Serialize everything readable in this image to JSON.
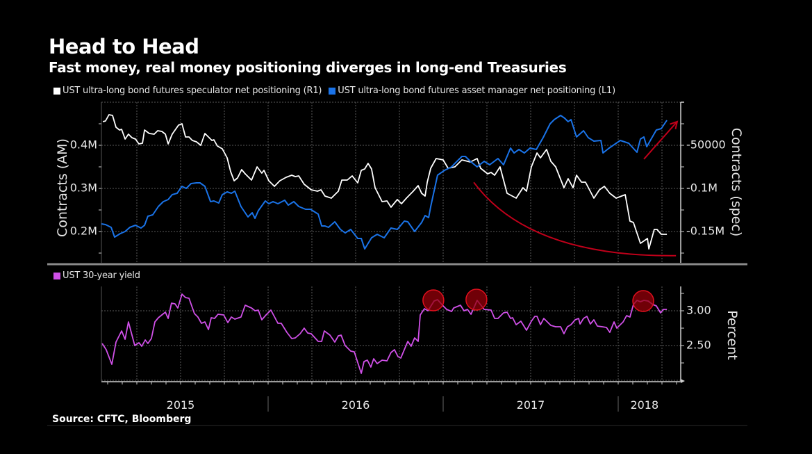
{
  "header": {
    "title": "Head to Head",
    "subtitle": "Fast money, real money positioning diverges in long-end Treasuries"
  },
  "footer": {
    "source": "Source: CFTC, Bloomberg"
  },
  "colors": {
    "background": "#000000",
    "speculator": "#ffffff",
    "asset_manager": "#1a73e8",
    "yield": "#d050e8",
    "annotation": "#c0001a",
    "grid": "#5a5a5a",
    "axis": "#d0d0d0"
  },
  "chart_data": [
    {
      "type": "line",
      "panel": "top",
      "title": "Head to Head",
      "xlabel": "",
      "x_unit": "decimal year",
      "xlim": [
        2015.05,
        2018.4
      ],
      "grid": true,
      "legend_position": "top-left",
      "legend": [
        "UST ultra-long bond futures speculator net positioning (R1)",
        "UST ultra-long bond futures asset manager net positioning (L1)"
      ],
      "y_left": {
        "label": "Contracts (AM)",
        "ticks": [
          0.2,
          0.3,
          0.4
        ],
        "tick_labels": [
          "0.2M",
          "0.3M",
          "0.4M"
        ],
        "range": [
          0.128,
          0.5
        ],
        "unit": "million contracts"
      },
      "y_right": {
        "label": "Contracts (spec)",
        "ticks": [
          -50000,
          -100000,
          -150000
        ],
        "tick_labels": [
          "-50000",
          "-0.1M",
          "-0.15M"
        ],
        "range": [
          -186000,
          0
        ],
        "unit": "contracts"
      },
      "series": [
        {
          "name": "UST ultra-long bond futures speculator net positioning (R1)",
          "axis": "right",
          "color": "#ffffff",
          "x": [
            2015.056,
            2015.071,
            2015.091,
            2015.111,
            2015.131,
            2015.151,
            2015.163,
            2015.183,
            2015.202,
            2015.222,
            2015.242,
            2015.262,
            2015.282,
            2015.294,
            2015.321,
            2015.349,
            2015.369,
            2015.393,
            2015.413,
            2015.429,
            2015.452,
            2015.488,
            2015.508,
            2015.528,
            2015.548,
            2015.567,
            2015.591,
            2015.615,
            2015.639,
            2015.659,
            2015.679,
            2015.69,
            2015.71,
            2015.738,
            2015.766,
            2015.786,
            2015.806,
            2015.825,
            2015.849,
            2015.869,
            2015.905,
            2015.937,
            2015.964,
            2015.976,
            2016.004,
            2016.036,
            2016.067,
            2016.103,
            2016.135,
            2016.155,
            2016.175,
            2016.206,
            2016.246,
            2016.282,
            2016.302,
            2016.325,
            2016.361,
            2016.401,
            2016.421,
            2016.452,
            2016.48,
            2016.512,
            2016.532,
            2016.552,
            2016.571,
            2016.591,
            2016.611,
            2016.651,
            2016.679,
            2016.702,
            2016.738,
            2016.762,
            2016.79,
            2016.829,
            2016.857,
            2016.877,
            2016.897,
            2016.909,
            2016.929,
            2016.96,
            2017.0,
            2017.028,
            2017.067,
            2017.107,
            2017.155,
            2017.194,
            2017.214,
            2017.254,
            2017.274,
            2017.294,
            2017.325,
            2017.365,
            2017.417,
            2017.456,
            2017.476,
            2017.504,
            2017.536,
            2017.556,
            2017.591,
            2017.615,
            2017.643,
            2017.69,
            2017.714,
            2017.742,
            2017.762,
            2017.79,
            2017.813,
            2017.861,
            2017.893,
            2017.921,
            2017.952,
            2017.988,
            2018.04,
            2018.067,
            2018.087,
            2018.127,
            2018.167,
            2018.175,
            2018.206,
            2018.222,
            2018.246,
            2018.278
          ],
          "values": [
            -22581,
            -21774,
            -14516,
            -15323,
            -29032,
            -32258,
            -31452,
            -42742,
            -37097,
            -41129,
            -42742,
            -48387,
            -47581,
            -32258,
            -36290,
            -37097,
            -33065,
            -33871,
            -37097,
            -48387,
            -37097,
            -26613,
            -25000,
            -40323,
            -40323,
            -44355,
            -45968,
            -50000,
            -36290,
            -40323,
            -44355,
            -43548,
            -50806,
            -54032,
            -64516,
            -80645,
            -91129,
            -87903,
            -78226,
            -83065,
            -90323,
            -75000,
            -82258,
            -79032,
            -91129,
            -97581,
            -91129,
            -87097,
            -84677,
            -86290,
            -85484,
            -95161,
            -101613,
            -103226,
            -101613,
            -108871,
            -111290,
            -103226,
            -90323,
            -90323,
            -85484,
            -93548,
            -79032,
            -77419,
            -70968,
            -77419,
            -99194,
            -115323,
            -114516,
            -121774,
            -112903,
            -117742,
            -111290,
            -103226,
            -96774,
            -105645,
            -108871,
            -92742,
            -76613,
            -65323,
            -66935,
            -76613,
            -75000,
            -66935,
            -69355,
            -65323,
            -76613,
            -83065,
            -81452,
            -84677,
            -75000,
            -105645,
            -111290,
            -99194,
            -103226,
            -75000,
            -58871,
            -64516,
            -54839,
            -68548,
            -75000,
            -99194,
            -88710,
            -99194,
            -84677,
            -92742,
            -92742,
            -111290,
            -101613,
            -97581,
            -105645,
            -111290,
            -107258,
            -137903,
            -139516,
            -163710,
            -158065,
            -170161,
            -147581,
            -147581,
            -153226,
            -153226
          ]
        },
        {
          "name": "UST ultra-long bond futures asset manager net positioning (L1)",
          "axis": "left",
          "color": "#1a73e8",
          "x": [
            2015.048,
            2015.071,
            2015.103,
            2015.123,
            2015.155,
            2015.183,
            2015.21,
            2015.242,
            2015.274,
            2015.294,
            2015.313,
            2015.341,
            2015.373,
            2015.401,
            2015.429,
            2015.452,
            2015.48,
            2015.508,
            2015.532,
            2015.56,
            2015.591,
            2015.611,
            2015.639,
            2015.671,
            2015.69,
            2015.718,
            2015.738,
            2015.766,
            2015.79,
            2015.81,
            2015.845,
            2015.885,
            2015.909,
            2015.925,
            2015.944,
            2015.984,
            2016.004,
            2016.028,
            2016.056,
            2016.095,
            2016.115,
            2016.147,
            2016.175,
            2016.214,
            2016.242,
            2016.286,
            2016.306,
            2016.325,
            2016.345,
            2016.381,
            2016.413,
            2016.44,
            2016.472,
            2016.512,
            2016.532,
            2016.552,
            2016.591,
            2016.623,
            2016.663,
            2016.702,
            2016.738,
            2016.778,
            2016.798,
            2016.837,
            2016.877,
            2016.897,
            2016.917,
            2016.929,
            2016.968,
            2017.008,
            2017.048,
            2017.067,
            2017.107,
            2017.127,
            2017.155,
            2017.194,
            2017.234,
            2017.266,
            2017.313,
            2017.345,
            2017.385,
            2017.405,
            2017.433,
            2017.464,
            2017.496,
            2017.532,
            2017.571,
            2017.611,
            2017.635,
            2017.671,
            2017.694,
            2017.714,
            2017.73,
            2017.762,
            2017.802,
            2017.829,
            2017.861,
            2017.901,
            2017.913,
            2017.948,
            2018.012,
            2018.06,
            2018.107,
            2018.127,
            2018.147,
            2018.163,
            2018.218,
            2018.246,
            2018.278
          ],
          "values": [
            0.2177,
            0.2161,
            0.2097,
            0.1871,
            0.1952,
            0.2,
            0.2097,
            0.2145,
            0.2081,
            0.2145,
            0.2355,
            0.2387,
            0.2581,
            0.2694,
            0.2742,
            0.2855,
            0.2887,
            0.3048,
            0.3,
            0.3113,
            0.3129,
            0.3129,
            0.3048,
            0.2694,
            0.271,
            0.2661,
            0.2855,
            0.2919,
            0.2887,
            0.2935,
            0.2581,
            0.2339,
            0.2435,
            0.2306,
            0.2484,
            0.271,
            0.2645,
            0.2694,
            0.2645,
            0.2726,
            0.2613,
            0.2694,
            0.2581,
            0.2516,
            0.2516,
            0.2403,
            0.2129,
            0.2129,
            0.2097,
            0.2226,
            0.2048,
            0.1968,
            0.2048,
            0.1839,
            0.1839,
            0.1597,
            0.1855,
            0.1935,
            0.1855,
            0.2081,
            0.2048,
            0.2242,
            0.2226,
            0.2,
            0.221,
            0.2371,
            0.2323,
            0.2581,
            0.3306,
            0.3419,
            0.35,
            0.3581,
            0.3742,
            0.3742,
            0.3629,
            0.35,
            0.3629,
            0.3548,
            0.3694,
            0.3548,
            0.3935,
            0.3823,
            0.3903,
            0.3823,
            0.3935,
            0.3903,
            0.4177,
            0.45,
            0.4597,
            0.4694,
            0.4629,
            0.4548,
            0.4597,
            0.4194,
            0.4339,
            0.4177,
            0.4097,
            0.4113,
            0.3823,
            0.3935,
            0.4113,
            0.4048,
            0.3839,
            0.4145,
            0.4194,
            0.3968,
            0.4355,
            0.4387,
            0.4581
          ]
        }
      ],
      "annotations": [
        {
          "kind": "curve",
          "description": "downtrend in speculator positioning",
          "from": [
            2017.175,
            -93000
          ],
          "to": [
            2018.33,
            -178000
          ],
          "axis": "right"
        },
        {
          "kind": "arrow",
          "description": "uptrend in asset manager positioning",
          "from": [
            2018.147,
            0.368
          ],
          "to": [
            2018.337,
            0.455
          ],
          "axis": "left"
        }
      ]
    },
    {
      "type": "line",
      "panel": "bottom",
      "xlabel": "",
      "x_unit": "decimal year",
      "xlim": [
        2015.05,
        2018.4
      ],
      "grid": true,
      "legend_position": "top-left",
      "legend": [
        "UST 30-year yield"
      ],
      "x_tick_labels": [
        "2015",
        "2016",
        "2017",
        "2018"
      ],
      "x_tick_positions": [
        2015.5,
        2016.5,
        2017.5,
        2018.15
      ],
      "year_boundaries": [
        2016,
        2017,
        2018
      ],
      "y_right": {
        "label": "Percent",
        "ticks": [
          2.5,
          3.0
        ],
        "tick_labels": [
          "2.50",
          "3.00"
        ],
        "range": [
          2.0,
          3.35
        ],
        "unit": "percent"
      },
      "series": [
        {
          "name": "UST 30-year yield",
          "axis": "right",
          "color": "#d050e8",
          "x": [
            2015.052,
            2015.075,
            2015.107,
            2015.131,
            2015.163,
            2015.183,
            2015.202,
            2015.238,
            2015.262,
            2015.278,
            2015.298,
            2015.313,
            2015.333,
            2015.353,
            2015.373,
            2015.393,
            2015.413,
            2015.429,
            2015.448,
            2015.468,
            2015.484,
            2015.508,
            2015.528,
            2015.548,
            2015.579,
            2015.599,
            2015.619,
            2015.639,
            2015.659,
            2015.675,
            2015.694,
            2015.714,
            2015.746,
            2015.77,
            2015.79,
            2015.81,
            2015.845,
            2015.869,
            2015.905,
            2015.925,
            2015.944,
            2015.964,
            2015.988,
            2016.016,
            2016.056,
            2016.075,
            2016.107,
            2016.135,
            2016.155,
            2016.183,
            2016.206,
            2016.226,
            2016.246,
            2016.286,
            2016.306,
            2016.321,
            2016.353,
            2016.381,
            2016.401,
            2016.417,
            2016.44,
            2016.472,
            2016.492,
            2016.532,
            2016.548,
            2016.567,
            2016.587,
            2016.603,
            2016.623,
            2016.651,
            2016.679,
            2016.702,
            2016.722,
            2016.742,
            2016.758,
            2016.798,
            2016.817,
            2016.837,
            2016.857,
            2016.869,
            2016.893,
            2016.913,
            2016.948,
            2016.968,
            2017.0,
            2017.02,
            2017.048,
            2017.06,
            2017.099,
            2017.119,
            2017.139,
            2017.159,
            2017.175,
            2017.194,
            2017.234,
            2017.274,
            2017.294,
            2017.313,
            2017.345,
            2017.365,
            2017.385,
            2017.397,
            2017.417,
            2017.444,
            2017.476,
            2017.504,
            2017.524,
            2017.536,
            2017.556,
            2017.575,
            2017.615,
            2017.643,
            2017.671,
            2017.69,
            2017.71,
            2017.73,
            2017.754,
            2017.774,
            2017.782,
            2017.802,
            2017.821,
            2017.841,
            2017.861,
            2017.881,
            2017.909,
            2017.933,
            2017.952,
            2017.976,
            2017.992,
            2018.028,
            2018.048,
            2018.067,
            2018.087,
            2018.107,
            2018.127,
            2018.147,
            2018.171,
            2018.198,
            2018.218,
            2018.242,
            2018.258,
            2018.278
          ],
          "values": [
            2.53,
            2.44,
            2.23,
            2.55,
            2.71,
            2.59,
            2.84,
            2.5,
            2.54,
            2.49,
            2.58,
            2.53,
            2.6,
            2.84,
            2.9,
            2.94,
            2.98,
            2.89,
            3.11,
            3.1,
            3.04,
            3.24,
            3.19,
            3.18,
            2.96,
            2.91,
            2.82,
            2.84,
            2.73,
            2.9,
            2.89,
            2.95,
            2.94,
            2.83,
            2.91,
            2.88,
            2.91,
            3.08,
            3.04,
            3.0,
            3.01,
            2.87,
            2.94,
            3.01,
            2.82,
            2.82,
            2.69,
            2.6,
            2.61,
            2.67,
            2.75,
            2.68,
            2.67,
            2.56,
            2.56,
            2.71,
            2.65,
            2.55,
            2.64,
            2.65,
            2.5,
            2.42,
            2.41,
            2.1,
            2.27,
            2.29,
            2.19,
            2.31,
            2.24,
            2.29,
            2.28,
            2.4,
            2.44,
            2.34,
            2.32,
            2.56,
            2.49,
            2.61,
            2.56,
            2.94,
            3.03,
            3.0,
            3.14,
            3.16,
            3.07,
            3.02,
            2.99,
            3.04,
            3.08,
            3.0,
            3.02,
            2.95,
            3.04,
            3.15,
            3.02,
            3.01,
            2.89,
            2.89,
            2.97,
            2.98,
            2.89,
            2.9,
            2.8,
            2.85,
            2.72,
            2.85,
            2.92,
            2.92,
            2.8,
            2.89,
            2.79,
            2.77,
            2.77,
            2.67,
            2.77,
            2.8,
            2.87,
            2.89,
            2.81,
            2.89,
            2.92,
            2.81,
            2.87,
            2.78,
            2.77,
            2.76,
            2.69,
            2.84,
            2.75,
            2.84,
            2.93,
            2.91,
            3.09,
            3.15,
            3.13,
            3.15,
            3.14,
            3.09,
            3.07,
            2.97,
            3.02,
            3.02
          ]
        }
      ],
      "annotations": [
        {
          "kind": "circle",
          "description": "yield peak highlight",
          "x": 2016.944,
          "y": 3.15
        },
        {
          "kind": "circle",
          "description": "yield peak highlight",
          "x": 2017.19,
          "y": 3.16
        },
        {
          "kind": "circle",
          "description": "yield peak highlight",
          "x": 2018.143,
          "y": 3.14
        }
      ]
    }
  ]
}
